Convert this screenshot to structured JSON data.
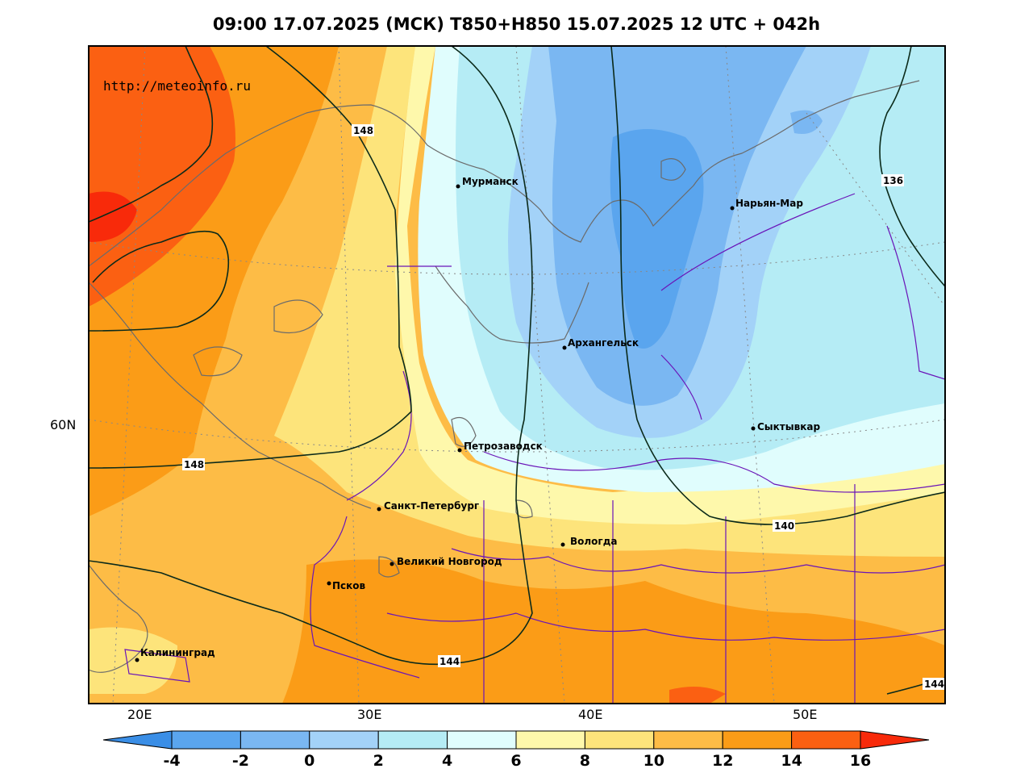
{
  "title": "09:00 17.07.2025 (МСК) T850+H850 15.07.2025 12 UTC + 042h",
  "watermark": "http://meteoinfo.ru",
  "axes": {
    "lon_labels": [
      "20E",
      "30E",
      "40E",
      "50E"
    ],
    "lat_labels": [
      "60N"
    ]
  },
  "cities": [
    {
      "name": "Мурманск"
    },
    {
      "name": "Нарьян-Мар"
    },
    {
      "name": "Архангельск"
    },
    {
      "name": "Сыктывкар"
    },
    {
      "name": "Петрозаводск"
    },
    {
      "name": "Санкт-Петербург"
    },
    {
      "name": "Вологда"
    },
    {
      "name": "Великий Новгород"
    },
    {
      "name": "Псков"
    },
    {
      "name": "Калининград"
    }
  ],
  "contour_labels": [
    "148",
    "148",
    "136",
    "140",
    "144",
    "144"
  ],
  "colorbar": {
    "ticks": [
      "-4",
      "-2",
      "0",
      "2",
      "4",
      "6",
      "8",
      "10",
      "12",
      "14",
      "16"
    ],
    "colors": [
      "#3a8ee6",
      "#5aa5ee",
      "#7ab7f2",
      "#a3d2f8",
      "#b5ecf5",
      "#e0fdfd",
      "#fef8ab",
      "#fde47b",
      "#fdbc46",
      "#fb9c17",
      "#fb6012",
      "#f82a0a"
    ]
  },
  "legend_colors": {
    "coast": "#6b6b6b",
    "borders": "#6a14b8",
    "contours": "#0b2a1a"
  }
}
